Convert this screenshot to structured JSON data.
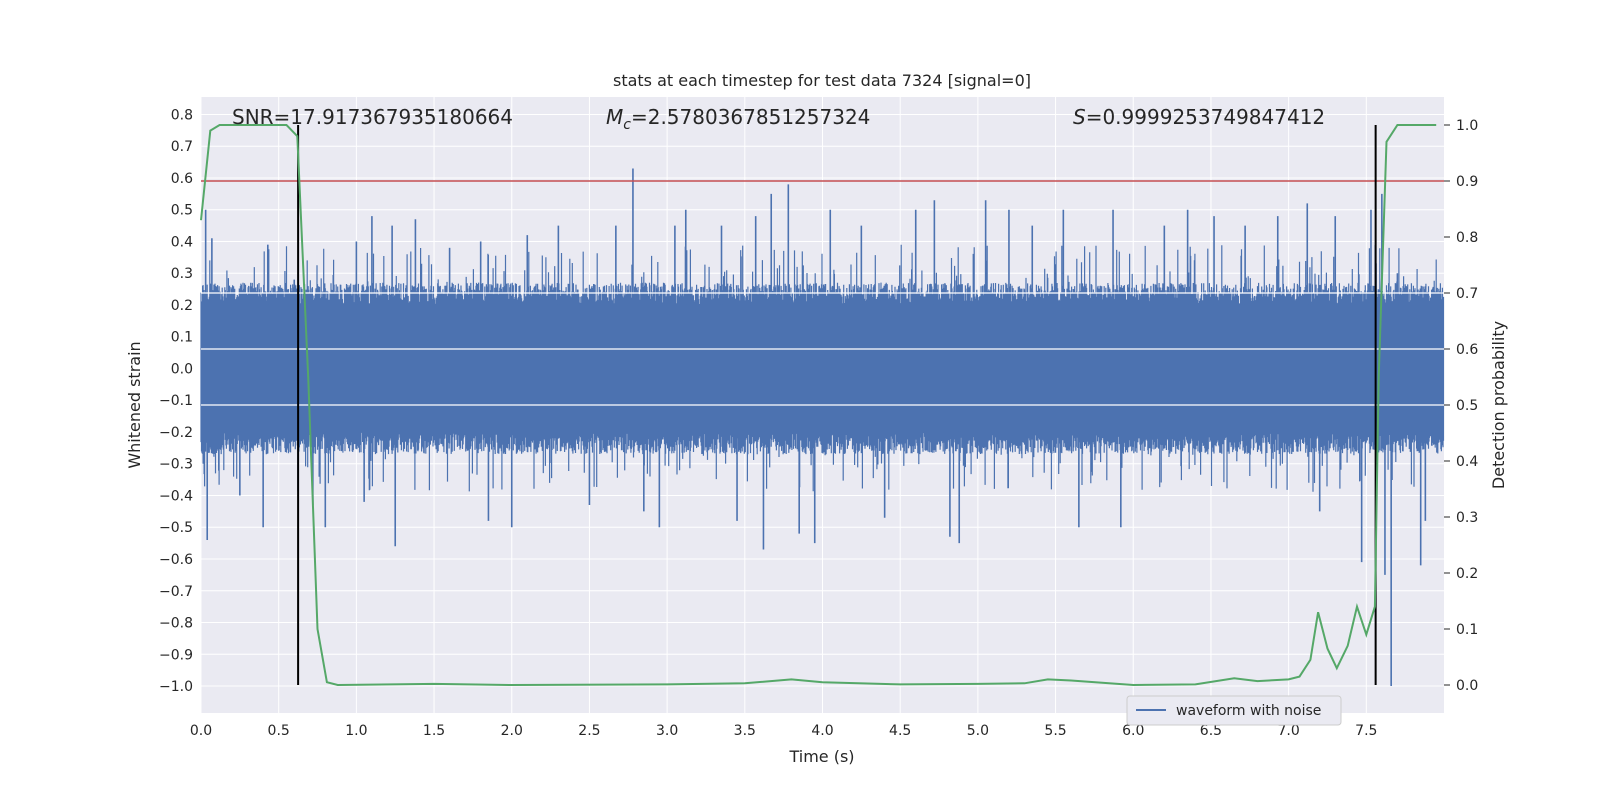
{
  "chart_data": {
    "type": "line",
    "title": "stats at each timestep for test data 7324 [signal=0]",
    "xlabel": "Time (s)",
    "ylabel_left": "Whitened strain",
    "ylabel_right": "Detection probability",
    "xlim": [
      0.0,
      8.0
    ],
    "ylim_left": [
      -1.085,
      0.855
    ],
    "ylim_right": [
      -0.05,
      1.05
    ],
    "x_ticks": [
      "0.0",
      "0.5",
      "1.0",
      "1.5",
      "2.0",
      "2.5",
      "3.0",
      "3.5",
      "4.0",
      "4.5",
      "5.0",
      "5.5",
      "6.0",
      "6.5",
      "7.0",
      "7.5"
    ],
    "y_ticks_left": [
      "0.8",
      "0.7",
      "0.6",
      "0.5",
      "0.4",
      "0.3",
      "0.2",
      "0.1",
      "0.0",
      "-0.1",
      "-0.2",
      "-0.3",
      "-0.4",
      "-0.5",
      "-0.6",
      "-0.7",
      "-0.8",
      "-0.9",
      "-1.0"
    ],
    "y_ticks_right": [
      "1.0",
      "0.9",
      "0.8",
      "0.7",
      "0.6",
      "0.5",
      "0.4",
      "0.3",
      "0.2",
      "0.1",
      "0.0"
    ],
    "annotations": {
      "snr": "SNR=17.917367935180664",
      "mc_symbol": "M",
      "mc_sub": "c",
      "mc_value": "=2.5780367851257324",
      "s_symbol": "S",
      "s_value": "=0.9999253749847412"
    },
    "threshold_right": 0.9,
    "vertical_lines_x": [
      0.625,
      7.56
    ],
    "vertical_lines_range_right": [
      0.0,
      1.0
    ],
    "series": [
      {
        "name": "waveform with noise",
        "axis": "left",
        "color": "#4c72b0",
        "kind": "noise",
        "typical_range": [
          -0.27,
          0.27
        ],
        "spikes": [
          {
            "x": 0.03,
            "y": 0.5
          },
          {
            "x": 0.04,
            "y": -0.54
          },
          {
            "x": 0.07,
            "y": 0.41
          },
          {
            "x": 0.25,
            "y": -0.4
          },
          {
            "x": 0.4,
            "y": -0.5
          },
          {
            "x": 0.43,
            "y": 0.39
          },
          {
            "x": 0.6,
            "y": 0.28
          },
          {
            "x": 0.72,
            "y": -0.43
          },
          {
            "x": 0.8,
            "y": -0.5
          },
          {
            "x": 1.0,
            "y": 0.4
          },
          {
            "x": 1.05,
            "y": -0.42
          },
          {
            "x": 1.1,
            "y": 0.48
          },
          {
            "x": 1.23,
            "y": 0.45
          },
          {
            "x": 1.25,
            "y": -0.56
          },
          {
            "x": 1.38,
            "y": 0.47
          },
          {
            "x": 1.6,
            "y": 0.38
          },
          {
            "x": 1.8,
            "y": 0.4
          },
          {
            "x": 1.85,
            "y": -0.48
          },
          {
            "x": 2.0,
            "y": -0.5
          },
          {
            "x": 2.1,
            "y": 0.42
          },
          {
            "x": 2.3,
            "y": 0.45
          },
          {
            "x": 2.5,
            "y": -0.43
          },
          {
            "x": 2.67,
            "y": 0.45
          },
          {
            "x": 2.78,
            "y": 0.63
          },
          {
            "x": 2.85,
            "y": -0.45
          },
          {
            "x": 2.95,
            "y": -0.5
          },
          {
            "x": 3.05,
            "y": 0.45
          },
          {
            "x": 3.12,
            "y": 0.5
          },
          {
            "x": 3.35,
            "y": 0.45
          },
          {
            "x": 3.45,
            "y": -0.48
          },
          {
            "x": 3.57,
            "y": 0.48
          },
          {
            "x": 3.62,
            "y": -0.57
          },
          {
            "x": 3.67,
            "y": 0.55
          },
          {
            "x": 3.78,
            "y": 0.58
          },
          {
            "x": 3.85,
            "y": -0.52
          },
          {
            "x": 3.95,
            "y": -0.55
          },
          {
            "x": 4.05,
            "y": 0.5
          },
          {
            "x": 4.25,
            "y": 0.45
          },
          {
            "x": 4.4,
            "y": -0.47
          },
          {
            "x": 4.6,
            "y": 0.5
          },
          {
            "x": 4.72,
            "y": 0.53
          },
          {
            "x": 4.82,
            "y": -0.53
          },
          {
            "x": 4.88,
            "y": -0.55
          },
          {
            "x": 5.05,
            "y": 0.53
          },
          {
            "x": 5.2,
            "y": 0.5
          },
          {
            "x": 5.35,
            "y": 0.45
          },
          {
            "x": 5.55,
            "y": 0.5
          },
          {
            "x": 5.65,
            "y": -0.5
          },
          {
            "x": 5.87,
            "y": 0.5
          },
          {
            "x": 5.92,
            "y": -0.5
          },
          {
            "x": 6.2,
            "y": 0.45
          },
          {
            "x": 6.35,
            "y": 0.5
          },
          {
            "x": 6.52,
            "y": 0.48
          },
          {
            "x": 6.72,
            "y": 0.45
          },
          {
            "x": 6.93,
            "y": 0.48
          },
          {
            "x": 7.12,
            "y": 0.52
          },
          {
            "x": 7.2,
            "y": -0.45
          },
          {
            "x": 7.3,
            "y": 0.48
          },
          {
            "x": 7.47,
            "y": -0.61
          },
          {
            "x": 7.53,
            "y": 0.5
          },
          {
            "x": 7.6,
            "y": 0.55
          },
          {
            "x": 7.62,
            "y": -0.65
          },
          {
            "x": 7.66,
            "y": -1.0
          },
          {
            "x": 7.7,
            "y": 0.3
          },
          {
            "x": 7.85,
            "y": -0.62
          },
          {
            "x": 7.88,
            "y": -0.48
          }
        ]
      },
      {
        "name": "detection probability",
        "axis": "right",
        "color": "#55a868",
        "x": [
          0.0,
          0.06,
          0.12,
          0.3,
          0.55,
          0.62,
          0.69,
          0.75,
          0.81,
          0.88,
          1.5,
          2.0,
          3.0,
          3.5,
          3.8,
          4.0,
          4.5,
          5.0,
          5.3,
          5.45,
          5.6,
          6.0,
          6.4,
          6.65,
          6.8,
          7.0,
          7.07,
          7.14,
          7.19,
          7.25,
          7.31,
          7.38,
          7.44,
          7.5,
          7.555,
          7.58,
          7.63,
          7.7,
          7.95
        ],
        "y": [
          0.83,
          0.99,
          1.0,
          1.0,
          1.0,
          0.98,
          0.55,
          0.1,
          0.005,
          0.0,
          0.002,
          0.0,
          0.001,
          0.003,
          0.01,
          0.005,
          0.001,
          0.002,
          0.003,
          0.01,
          0.008,
          0.0,
          0.001,
          0.012,
          0.007,
          0.01,
          0.015,
          0.045,
          0.13,
          0.065,
          0.03,
          0.07,
          0.14,
          0.09,
          0.14,
          0.55,
          0.97,
          1.0,
          1.0
        ]
      }
    ],
    "legend": {
      "entries": [
        "waveform with noise"
      ],
      "placement": "lower-right"
    }
  },
  "colors": {
    "background": "#eaeaf2",
    "grid": "#ffffff",
    "threshold": "#c44e52",
    "vline": "#000000"
  }
}
